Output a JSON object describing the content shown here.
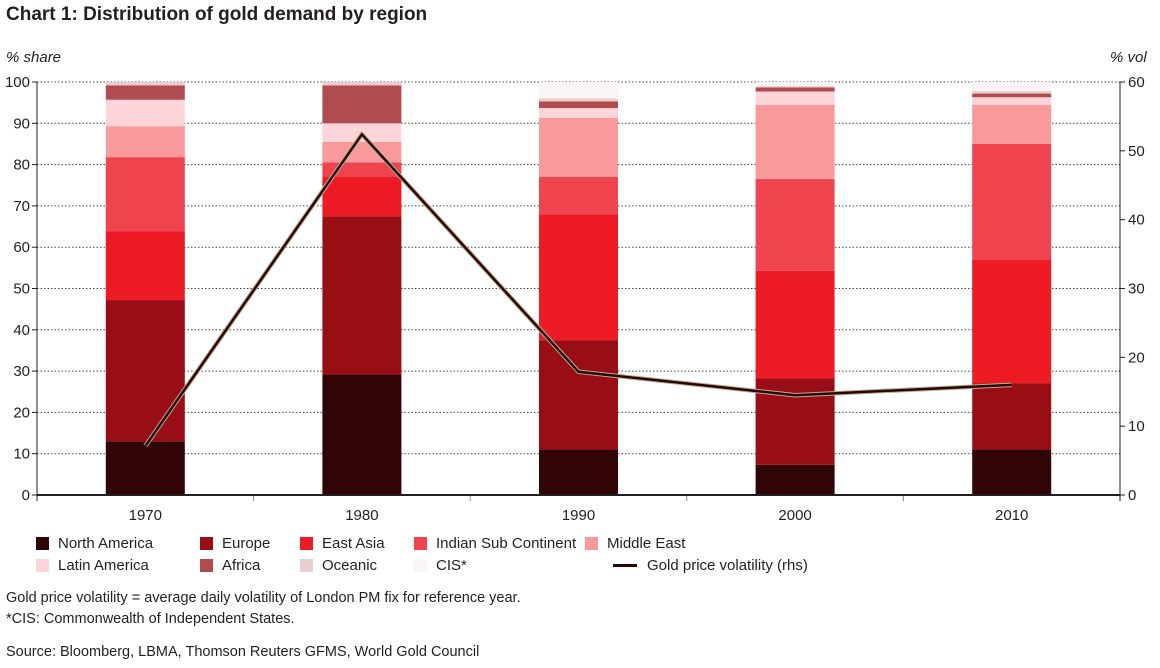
{
  "chart_data": {
    "type": "bar",
    "stacked": true,
    "title": "Chart 1: Distribution of gold demand by region",
    "ylabel_left": "% share",
    "ylabel_right": "% vol",
    "ylim_left": [
      0,
      100
    ],
    "ylim_right": [
      0,
      60
    ],
    "yticks_left": [
      0,
      10,
      20,
      30,
      40,
      50,
      60,
      70,
      80,
      90,
      100
    ],
    "yticks_right": [
      0,
      10,
      20,
      30,
      40,
      50,
      60
    ],
    "grid": true,
    "categories": [
      "1970",
      "1980",
      "1990",
      "2000",
      "2010"
    ],
    "series": [
      {
        "name": "North America",
        "color": "#310405",
        "values": [
          13.0,
          29.2,
          11.0,
          7.3,
          11.0
        ]
      },
      {
        "name": "Europe",
        "color": "#990d15",
        "values": [
          34.2,
          38.3,
          26.5,
          20.9,
          16.0
        ]
      },
      {
        "name": "East Asia",
        "color": "#ed1c24",
        "values": [
          16.6,
          9.5,
          30.5,
          26.1,
          30.0
        ]
      },
      {
        "name": "Indian Sub Continent",
        "color": "#ef434d",
        "values": [
          18.0,
          3.5,
          9.0,
          22.2,
          28.0
        ]
      },
      {
        "name": "Middle East",
        "color": "#f8999c",
        "values": [
          7.5,
          5.0,
          14.3,
          18.0,
          9.5
        ]
      },
      {
        "name": "Latin America",
        "color": "#fdd5d9",
        "values": [
          6.4,
          4.5,
          2.4,
          3.2,
          1.8
        ]
      },
      {
        "name": "Africa",
        "color": "#b04c50",
        "values": [
          3.5,
          9.2,
          1.6,
          1.0,
          0.9
        ]
      },
      {
        "name": "Oceanic",
        "color": "#e9cdcf",
        "values": [
          0.8,
          0.8,
          0.7,
          0.3,
          0.6
        ]
      },
      {
        "name": "CIS*",
        "color": "#faf5f4",
        "values": [
          0.0,
          0.0,
          4.0,
          1.0,
          2.2
        ]
      }
    ],
    "line": {
      "name": "Gold price volatility (rhs)",
      "color": "#2d0606",
      "axis": "right",
      "values": [
        7.1,
        52.4,
        17.9,
        14.5,
        16.0
      ]
    },
    "legend_position": "bottom"
  },
  "notes": {
    "volatility_def": "Gold price volatility = average daily volatility of London PM fix for reference year.",
    "cis_def": "*CIS: Commonwealth of Independent States.",
    "source": "Source: Bloomberg, LBMA, Thomson Reuters GFMS, World Gold Council"
  }
}
